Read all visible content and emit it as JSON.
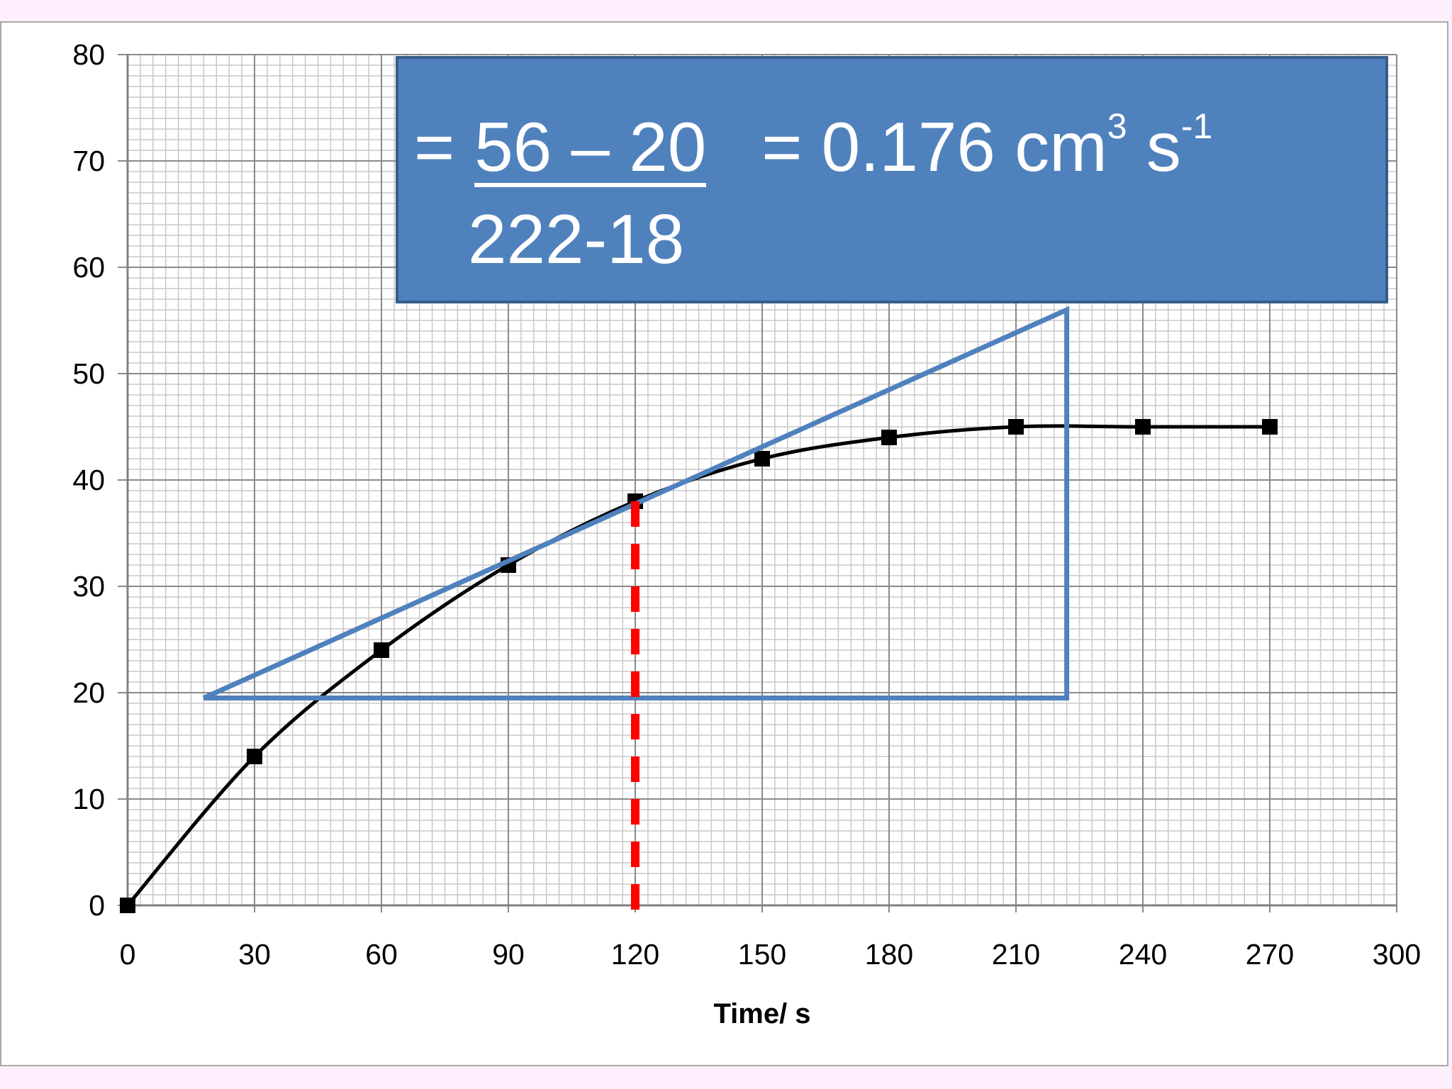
{
  "chart_data": {
    "type": "line",
    "x": [
      0,
      30,
      60,
      90,
      120,
      150,
      180,
      210,
      240,
      270
    ],
    "series": [
      {
        "values": [
          0,
          14,
          24,
          32,
          38,
          42,
          44,
          45,
          45,
          45
        ]
      }
    ],
    "xlabel": "Time/ s",
    "ylabel": "",
    "xlim": [
      0,
      300
    ],
    "ylim": [
      0,
      80
    ],
    "xticks": [
      "0",
      "30",
      "60",
      "90",
      "120",
      "150",
      "180",
      "210",
      "240",
      "270",
      "300"
    ],
    "yticks": [
      "0",
      "10",
      "20",
      "30",
      "40",
      "50",
      "60",
      "70",
      "80"
    ],
    "grid": true,
    "colors": {
      "series": "#000000",
      "tangent": "#4f81bd",
      "marker_line": "#ff0000"
    },
    "annotations": {
      "tangent_triangle": {
        "x1": 18,
        "y1": 19.5,
        "x2": 222,
        "y2": 56
      },
      "vertical_dashed_line_x": 120
    }
  },
  "formula": {
    "equals_sign": "=",
    "numerator": "56 – 20",
    "denominator": "222-18",
    "result_prefix": "= 0.176 cm",
    "result_exp1": "3",
    "result_unit": " s",
    "result_exp2": "-1",
    "box_color": "#4f81bd"
  }
}
